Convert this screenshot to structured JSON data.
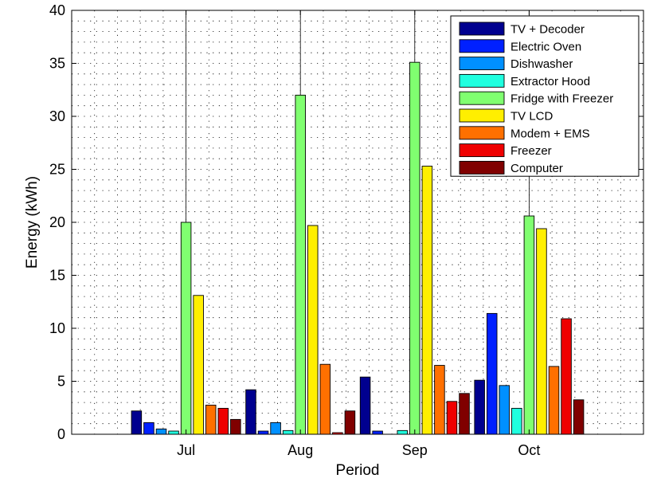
{
  "chart_data": {
    "type": "bar",
    "title": "",
    "xlabel": "Period",
    "ylabel": "Energy (kWh)",
    "categories": [
      "Jul",
      "Aug",
      "Sep",
      "Oct"
    ],
    "ylim": [
      0,
      40
    ],
    "yticks": [
      0,
      5,
      10,
      15,
      20,
      25,
      30,
      35,
      40
    ],
    "grid": true,
    "legend_position": "top-right",
    "series": [
      {
        "name": "TV + Decoder",
        "color": "#00008f",
        "values": [
          2.2,
          4.2,
          5.4,
          5.1
        ]
      },
      {
        "name": "Electric Oven",
        "color": "#0020ff",
        "values": [
          1.1,
          0.3,
          0.3,
          11.4
        ]
      },
      {
        "name": "Dishwasher",
        "color": "#0090ff",
        "values": [
          0.5,
          1.1,
          0.0,
          4.6
        ]
      },
      {
        "name": "Extractor Hood",
        "color": "#20ffdf",
        "values": [
          0.3,
          0.35,
          0.35,
          2.45
        ]
      },
      {
        "name": "Fridge with Freezer",
        "color": "#80ff70",
        "values": [
          20.0,
          32.0,
          35.1,
          20.6
        ]
      },
      {
        "name": "TV LCD",
        "color": "#ffef00",
        "values": [
          13.1,
          19.7,
          25.3,
          19.4
        ]
      },
      {
        "name": "Modem + EMS",
        "color": "#ff7000",
        "values": [
          2.75,
          6.6,
          6.5,
          6.4
        ]
      },
      {
        "name": "Freezer",
        "color": "#ef0000",
        "values": [
          2.45,
          0.15,
          3.1,
          10.9
        ]
      },
      {
        "name": "Computer",
        "color": "#800000",
        "values": [
          1.4,
          2.2,
          3.85,
          3.25
        ]
      }
    ]
  }
}
